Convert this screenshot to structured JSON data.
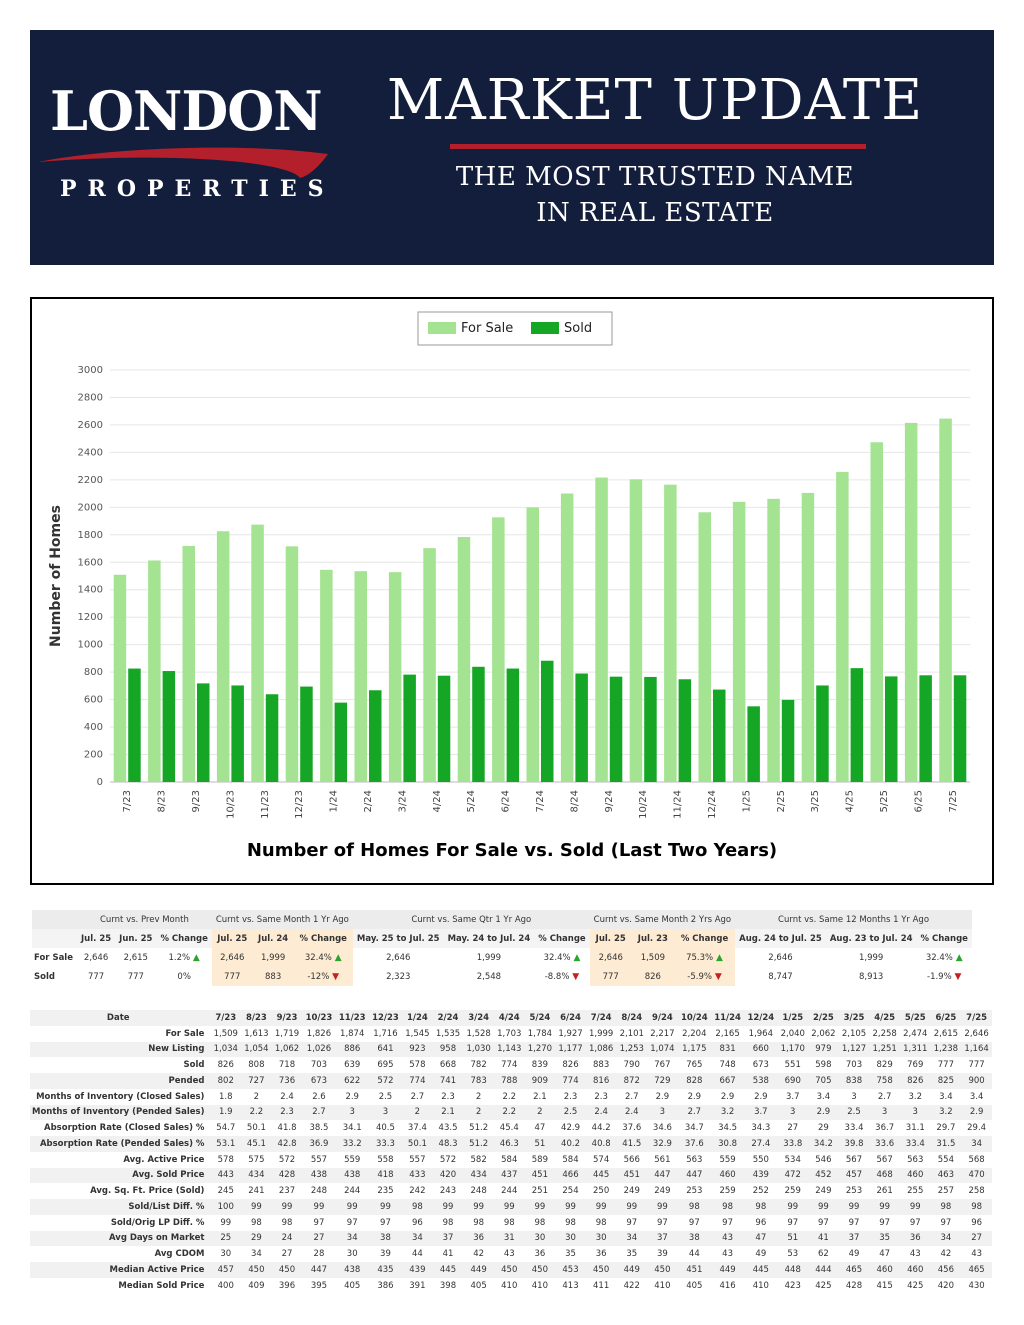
{
  "header": {
    "logo_top": "LONDON",
    "logo_bottom": "PROPERTIES",
    "title": "MARKET UPDATE",
    "tagline_1": "THE MOST TRUSTED NAME",
    "tagline_2": "IN REAL ESTATE",
    "colors": {
      "background": "#131e3c",
      "accent": "#b3202b"
    }
  },
  "chart_data": {
    "type": "bar",
    "title": "Number of Homes For Sale vs. Sold (Last Two Years)",
    "xlabel": "",
    "ylabel": "Number of Homes",
    "ylim": [
      0,
      3000
    ],
    "yticks": [
      0,
      200,
      400,
      600,
      800,
      1000,
      1200,
      1400,
      1600,
      1800,
      2000,
      2200,
      2400,
      2600,
      2800,
      3000
    ],
    "grid": true,
    "legend_position": "top-center",
    "categories": [
      "7/23",
      "8/23",
      "9/23",
      "10/23",
      "11/23",
      "12/23",
      "1/24",
      "2/24",
      "3/24",
      "4/24",
      "5/24",
      "6/24",
      "7/24",
      "8/24",
      "9/24",
      "10/24",
      "11/24",
      "12/24",
      "1/25",
      "2/25",
      "3/25",
      "4/25",
      "5/25",
      "6/25",
      "7/25"
    ],
    "series": [
      {
        "name": "For Sale",
        "color": "#a3e391",
        "values": [
          1509,
          1613,
          1719,
          1826,
          1874,
          1716,
          1545,
          1535,
          1528,
          1703,
          1784,
          1927,
          1999,
          2101,
          2217,
          2204,
          2165,
          1964,
          2040,
          2062,
          2105,
          2258,
          2474,
          2615,
          2646
        ]
      },
      {
        "name": "Sold",
        "color": "#16a626",
        "values": [
          826,
          808,
          718,
          703,
          639,
          695,
          578,
          668,
          782,
          774,
          839,
          826,
          883,
          790,
          767,
          765,
          748,
          673,
          551,
          598,
          703,
          829,
          769,
          777,
          777
        ]
      }
    ]
  },
  "summary": {
    "groups": [
      "Curnt vs. Prev Month",
      "Curnt vs. Same Month 1 Yr Ago",
      "Curnt vs. Same Qtr 1 Yr Ago",
      "Curnt vs. Same Month 2 Yrs Ago",
      "Curnt vs. Same 12 Months 1 Yr Ago"
    ],
    "periods": [
      "Jul. 25",
      "Jun. 25",
      "% Change",
      "Jul. 25",
      "Jul. 24",
      "% Change",
      "May. 25 to Jul. 25",
      "May. 24 to Jul. 24",
      "% Change",
      "Jul. 25",
      "Jul. 23",
      "% Change",
      "Aug. 24 to Jul. 25",
      "Aug. 23 to Jul. 24",
      "% Change"
    ],
    "rows": [
      {
        "label": "For Sale",
        "cells": [
          "2,646",
          "2,615",
          "1.2%",
          "2,646",
          "1,999",
          "32.4%",
          "2,646",
          "1,999",
          "32.4%",
          "2,646",
          "1,509",
          "75.3%",
          "2,646",
          "1,999",
          "32.4%"
        ]
      },
      {
        "label": "Sold",
        "cells": [
          "777",
          "777",
          "0%",
          "777",
          "883",
          "-12%",
          "2,323",
          "2,548",
          "-8.8%",
          "777",
          "826",
          "-5.9%",
          "8,747",
          "8,913",
          "-1.9%"
        ]
      }
    ]
  },
  "stats": {
    "header_label": "Date",
    "dates": [
      "7/23",
      "8/23",
      "9/23",
      "10/23",
      "11/23",
      "12/23",
      "1/24",
      "2/24",
      "3/24",
      "4/24",
      "5/24",
      "6/24",
      "7/24",
      "8/24",
      "9/24",
      "10/24",
      "11/24",
      "12/24",
      "1/25",
      "2/25",
      "3/25",
      "4/25",
      "5/25",
      "6/25",
      "7/25"
    ],
    "rows": [
      {
        "label": "For Sale",
        "values": [
          "1,509",
          "1,613",
          "1,719",
          "1,826",
          "1,874",
          "1,716",
          "1,545",
          "1,535",
          "1,528",
          "1,703",
          "1,784",
          "1,927",
          "1,999",
          "2,101",
          "2,217",
          "2,204",
          "2,165",
          "1,964",
          "2,040",
          "2,062",
          "2,105",
          "2,258",
          "2,474",
          "2,615",
          "2,646"
        ]
      },
      {
        "label": "New Listing",
        "values": [
          "1,034",
          "1,054",
          "1,062",
          "1,026",
          "886",
          "641",
          "923",
          "958",
          "1,030",
          "1,143",
          "1,270",
          "1,177",
          "1,086",
          "1,253",
          "1,074",
          "1,175",
          "831",
          "660",
          "1,170",
          "979",
          "1,127",
          "1,251",
          "1,311",
          "1,238",
          "1,164"
        ]
      },
      {
        "label": "Sold",
        "values": [
          "826",
          "808",
          "718",
          "703",
          "639",
          "695",
          "578",
          "668",
          "782",
          "774",
          "839",
          "826",
          "883",
          "790",
          "767",
          "765",
          "748",
          "673",
          "551",
          "598",
          "703",
          "829",
          "769",
          "777",
          "777"
        ]
      },
      {
        "label": "Pended",
        "values": [
          "802",
          "727",
          "736",
          "673",
          "622",
          "572",
          "774",
          "741",
          "783",
          "788",
          "909",
          "774",
          "816",
          "872",
          "729",
          "828",
          "667",
          "538",
          "690",
          "705",
          "838",
          "758",
          "826",
          "825",
          "900"
        ]
      },
      {
        "label": "Months of Inventory (Closed Sales)",
        "values": [
          "1.8",
          "2",
          "2.4",
          "2.6",
          "2.9",
          "2.5",
          "2.7",
          "2.3",
          "2",
          "2.2",
          "2.1",
          "2.3",
          "2.3",
          "2.7",
          "2.9",
          "2.9",
          "2.9",
          "2.9",
          "3.7",
          "3.4",
          "3",
          "2.7",
          "3.2",
          "3.4",
          "3.4"
        ]
      },
      {
        "label": "Months of Inventory (Pended Sales)",
        "values": [
          "1.9",
          "2.2",
          "2.3",
          "2.7",
          "3",
          "3",
          "2",
          "2.1",
          "2",
          "2.2",
          "2",
          "2.5",
          "2.4",
          "2.4",
          "3",
          "2.7",
          "3.2",
          "3.7",
          "3",
          "2.9",
          "2.5",
          "3",
          "3",
          "3.2",
          "2.9"
        ]
      },
      {
        "label": "Absorption Rate (Closed Sales) %",
        "values": [
          "54.7",
          "50.1",
          "41.8",
          "38.5",
          "34.1",
          "40.5",
          "37.4",
          "43.5",
          "51.2",
          "45.4",
          "47",
          "42.9",
          "44.2",
          "37.6",
          "34.6",
          "34.7",
          "34.5",
          "34.3",
          "27",
          "29",
          "33.4",
          "36.7",
          "31.1",
          "29.7",
          "29.4"
        ]
      },
      {
        "label": "Absorption Rate (Pended Sales) %",
        "values": [
          "53.1",
          "45.1",
          "42.8",
          "36.9",
          "33.2",
          "33.3",
          "50.1",
          "48.3",
          "51.2",
          "46.3",
          "51",
          "40.2",
          "40.8",
          "41.5",
          "32.9",
          "37.6",
          "30.8",
          "27.4",
          "33.8",
          "34.2",
          "39.8",
          "33.6",
          "33.4",
          "31.5",
          "34"
        ]
      },
      {
        "label": "Avg. Active Price",
        "values": [
          "578",
          "575",
          "572",
          "557",
          "559",
          "558",
          "557",
          "572",
          "582",
          "584",
          "589",
          "584",
          "574",
          "566",
          "561",
          "563",
          "559",
          "550",
          "534",
          "546",
          "567",
          "567",
          "563",
          "554",
          "568"
        ]
      },
      {
        "label": "Avg. Sold Price",
        "values": [
          "443",
          "434",
          "428",
          "438",
          "438",
          "418",
          "433",
          "420",
          "434",
          "437",
          "451",
          "466",
          "445",
          "451",
          "447",
          "447",
          "460",
          "439",
          "472",
          "452",
          "457",
          "468",
          "460",
          "463",
          "470"
        ]
      },
      {
        "label": "Avg. Sq. Ft. Price (Sold)",
        "values": [
          "245",
          "241",
          "237",
          "248",
          "244",
          "235",
          "242",
          "243",
          "248",
          "244",
          "251",
          "254",
          "250",
          "249",
          "249",
          "253",
          "259",
          "252",
          "259",
          "249",
          "253",
          "261",
          "255",
          "257",
          "258"
        ]
      },
      {
        "label": "Sold/List Diff. %",
        "values": [
          "100",
          "99",
          "99",
          "99",
          "99",
          "99",
          "98",
          "99",
          "99",
          "99",
          "99",
          "99",
          "99",
          "99",
          "99",
          "98",
          "98",
          "98",
          "99",
          "99",
          "99",
          "99",
          "99",
          "98",
          "98"
        ]
      },
      {
        "label": "Sold/Orig LP Diff. %",
        "values": [
          "99",
          "98",
          "98",
          "97",
          "97",
          "97",
          "96",
          "98",
          "98",
          "98",
          "98",
          "98",
          "98",
          "97",
          "97",
          "97",
          "97",
          "96",
          "97",
          "97",
          "97",
          "97",
          "97",
          "97",
          "96"
        ]
      },
      {
        "label": "Avg Days on Market",
        "values": [
          "25",
          "29",
          "24",
          "27",
          "34",
          "38",
          "34",
          "37",
          "36",
          "31",
          "30",
          "30",
          "30",
          "34",
          "37",
          "38",
          "43",
          "47",
          "51",
          "41",
          "37",
          "35",
          "36",
          "34",
          "27"
        ]
      },
      {
        "label": "Avg CDOM",
        "values": [
          "30",
          "34",
          "27",
          "28",
          "30",
          "39",
          "44",
          "41",
          "42",
          "43",
          "36",
          "35",
          "36",
          "35",
          "39",
          "44",
          "43",
          "49",
          "53",
          "62",
          "49",
          "47",
          "43",
          "42",
          "43"
        ]
      },
      {
        "label": "Median Active Price",
        "values": [
          "457",
          "450",
          "450",
          "447",
          "438",
          "435",
          "439",
          "445",
          "449",
          "450",
          "450",
          "453",
          "450",
          "449",
          "450",
          "451",
          "449",
          "445",
          "448",
          "444",
          "465",
          "460",
          "460",
          "456",
          "465"
        ]
      },
      {
        "label": "Median Sold Price",
        "values": [
          "400",
          "409",
          "396",
          "395",
          "405",
          "386",
          "391",
          "398",
          "405",
          "410",
          "410",
          "413",
          "411",
          "422",
          "410",
          "405",
          "416",
          "410",
          "423",
          "425",
          "428",
          "415",
          "425",
          "420",
          "430"
        ]
      }
    ]
  }
}
